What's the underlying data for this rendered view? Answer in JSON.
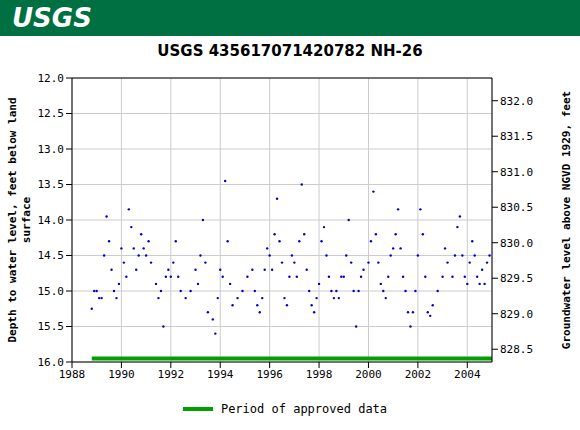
{
  "header": {
    "logo": "USGS"
  },
  "chart_data": {
    "type": "scatter",
    "title": "USGS 435617071420782 NH-26",
    "y_label": "Depth to water level, feet below land surface",
    "y2_label": "Groundwater level above NGVD 1929, feet",
    "xlim": [
      1988,
      2005
    ],
    "xticks": [
      1988,
      1990,
      1992,
      1994,
      1996,
      1998,
      2000,
      2002,
      2004
    ],
    "ylim": [
      16,
      12
    ],
    "yticks": [
      {
        "value": 12,
        "label": "12.0"
      },
      {
        "value": 12.5,
        "label": "12.5"
      },
      {
        "value": 13,
        "label": "13.0"
      },
      {
        "value": 13.5,
        "label": "13.5"
      },
      {
        "value": 14,
        "label": "14.0"
      },
      {
        "value": 14.5,
        "label": "14.5"
      },
      {
        "value": 15,
        "label": "15.0"
      },
      {
        "value": 15.5,
        "label": "15.5"
      },
      {
        "value": 16,
        "label": "16.0"
      }
    ],
    "y2lim": [
      828.32,
      832.32
    ],
    "y2ticks": [
      {
        "value": 828.5,
        "label": "828.5"
      },
      {
        "value": 829,
        "label": "829.0"
      },
      {
        "value": 829.5,
        "label": "829.5"
      },
      {
        "value": 830,
        "label": "830.0"
      },
      {
        "value": 830.5,
        "label": "830.5"
      },
      {
        "value": 831,
        "label": "831.0"
      },
      {
        "value": 831.5,
        "label": "831.5"
      },
      {
        "value": 832,
        "label": "832.0"
      }
    ],
    "grid": true,
    "legend": "bottom",
    "series": [
      {
        "color": "#0000cc",
        "marker": "dot",
        "x": [
          1988.8,
          1988.9,
          1989.0,
          1989.1,
          1989.2,
          1989.3,
          1989.4,
          1989.5,
          1989.6,
          1989.7,
          1989.8,
          1989.9,
          1990.0,
          1990.1,
          1990.2,
          1990.3,
          1990.4,
          1990.5,
          1990.6,
          1990.7,
          1990.8,
          1990.9,
          1991.0,
          1991.1,
          1991.2,
          1991.4,
          1991.5,
          1991.6,
          1991.7,
          1991.8,
          1991.9,
          1992.0,
          1992.1,
          1992.2,
          1992.3,
          1992.4,
          1992.6,
          1992.8,
          1993.0,
          1993.1,
          1993.2,
          1993.3,
          1993.4,
          1993.5,
          1993.7,
          1993.8,
          1993.9,
          1994.0,
          1994.1,
          1994.2,
          1994.3,
          1994.4,
          1994.5,
          1994.7,
          1994.9,
          1995.1,
          1995.3,
          1995.4,
          1995.5,
          1995.6,
          1995.7,
          1995.8,
          1995.9,
          1996.0,
          1996.1,
          1996.2,
          1996.3,
          1996.4,
          1996.5,
          1996.6,
          1996.7,
          1996.8,
          1996.9,
          1997.0,
          1997.1,
          1997.2,
          1997.3,
          1997.4,
          1997.5,
          1997.6,
          1997.7,
          1997.8,
          1997.9,
          1998.0,
          1998.1,
          1998.2,
          1998.3,
          1998.4,
          1998.5,
          1998.6,
          1998.7,
          1998.8,
          1998.9,
          1999.0,
          1999.1,
          1999.2,
          1999.3,
          1999.4,
          1999.5,
          1999.6,
          1999.7,
          1999.8,
          2000.0,
          2000.1,
          2000.2,
          2000.3,
          2000.4,
          2000.5,
          2000.6,
          2000.7,
          2000.8,
          2000.9,
          2001.0,
          2001.1,
          2001.2,
          2001.3,
          2001.4,
          2001.5,
          2001.6,
          2001.7,
          2001.8,
          2001.9,
          2002.0,
          2002.1,
          2002.2,
          2002.3,
          2002.4,
          2002.5,
          2002.6,
          2002.8,
          2003.0,
          2003.1,
          2003.2,
          2003.4,
          2003.5,
          2003.6,
          2003.7,
          2003.8,
          2003.9,
          2004.0,
          2004.1,
          2004.2,
          2004.3,
          2004.4,
          2004.5,
          2004.6,
          2004.7,
          2004.8,
          2004.9
        ],
        "values": [
          15.25,
          15.0,
          15.0,
          15.1,
          15.1,
          14.5,
          13.95,
          14.3,
          14.7,
          15.0,
          15.1,
          14.9,
          14.4,
          14.6,
          14.8,
          13.85,
          14.1,
          14.4,
          14.7,
          14.5,
          14.2,
          14.4,
          14.5,
          14.3,
          14.6,
          14.9,
          15.1,
          15.0,
          15.5,
          14.8,
          14.7,
          14.8,
          14.6,
          14.3,
          14.8,
          15.0,
          15.1,
          15.0,
          14.7,
          14.9,
          14.5,
          14.0,
          14.6,
          15.3,
          15.4,
          15.6,
          15.1,
          14.7,
          14.8,
          13.45,
          14.3,
          14.9,
          15.2,
          15.1,
          15.0,
          14.8,
          14.7,
          15.0,
          15.2,
          15.3,
          15.1,
          14.7,
          14.4,
          14.5,
          14.7,
          14.2,
          13.7,
          14.3,
          14.6,
          15.1,
          15.2,
          14.8,
          14.5,
          14.6,
          14.8,
          14.3,
          13.5,
          14.2,
          14.7,
          15.0,
          15.2,
          15.3,
          15.1,
          14.9,
          14.3,
          14.1,
          14.5,
          14.8,
          15.0,
          15.1,
          15.0,
          15.1,
          14.8,
          14.8,
          14.5,
          14.0,
          14.6,
          15.0,
          15.5,
          15.0,
          14.8,
          14.7,
          14.6,
          14.3,
          13.6,
          14.2,
          14.6,
          14.9,
          15.0,
          15.1,
          14.8,
          14.5,
          14.4,
          14.2,
          13.85,
          14.4,
          14.8,
          15.0,
          15.3,
          15.5,
          15.3,
          15.0,
          14.5,
          13.85,
          14.2,
          14.8,
          15.3,
          15.35,
          15.2,
          15.0,
          14.8,
          14.4,
          14.6,
          14.8,
          14.5,
          14.1,
          13.95,
          14.5,
          14.8,
          14.9,
          14.6,
          14.3,
          14.5,
          14.8,
          14.9,
          14.7,
          14.9,
          14.6,
          14.5
        ]
      },
      {
        "name": "Period of approved data",
        "type": "line",
        "line_style": "solid",
        "color": "#00a000",
        "x": [
          1988.8,
          2005
        ],
        "values": [
          15.95,
          15.95
        ]
      }
    ]
  }
}
